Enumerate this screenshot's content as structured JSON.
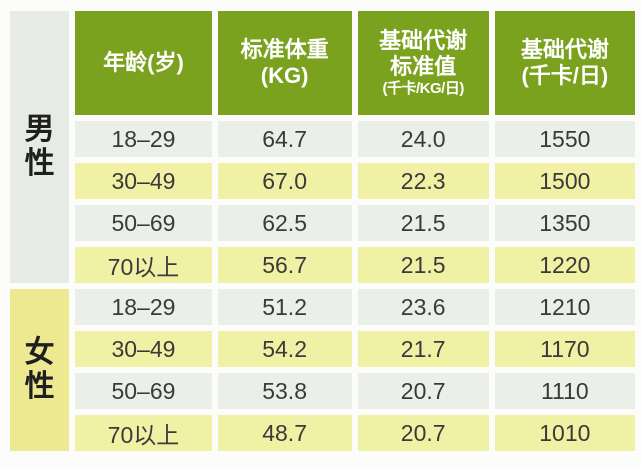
{
  "colors": {
    "header_green": "#7ba21f",
    "row_light": "#ebefe9",
    "row_yellow": "#f1f1a5",
    "male_cell_bg": "#e7ebe5",
    "female_cell_bg": "#ece991",
    "header_text": "#ffffff",
    "data_text": "#3a3a3a",
    "page_bg": "#fcfdfb"
  },
  "table": {
    "header": {
      "age": "年龄(岁)",
      "weight_line1": "标准体重",
      "weight_line2": "(KG)",
      "bmr_std_line1": "基础代谢",
      "bmr_std_line2": "标准值",
      "bmr_std_line3": "(千卡/KG/日)",
      "bmr_line1": "基础代谢",
      "bmr_line2": "(千卡/日)"
    },
    "genders": {
      "male": "男性",
      "female": "女性"
    },
    "rows": [
      {
        "group": "male",
        "age": "18–29",
        "weight": "64.7",
        "bmr_std": "24.0",
        "bmr": "1550"
      },
      {
        "group": "male",
        "age": "30–49",
        "weight": "67.0",
        "bmr_std": "22.3",
        "bmr": "1500"
      },
      {
        "group": "male",
        "age": "50–69",
        "weight": "62.5",
        "bmr_std": "21.5",
        "bmr": "1350"
      },
      {
        "group": "male",
        "age": "70以上",
        "weight": "56.7",
        "bmr_std": "21.5",
        "bmr": "1220"
      },
      {
        "group": "female",
        "age": "18–29",
        "weight": "51.2",
        "bmr_std": "23.6",
        "bmr": "1210"
      },
      {
        "group": "female",
        "age": "30–49",
        "weight": "54.2",
        "bmr_std": "21.7",
        "bmr": "1170"
      },
      {
        "group": "female",
        "age": "50–69",
        "weight": "53.8",
        "bmr_std": "20.7",
        "bmr": "1110"
      },
      {
        "group": "female",
        "age": "70以上",
        "weight": "48.7",
        "bmr_std": "20.7",
        "bmr": "1010"
      }
    ]
  },
  "chart_data": {
    "type": "table",
    "title": "",
    "columns": [
      "年龄(岁)",
      "标准体重(KG)",
      "基础代谢标准值(千卡/KG/日)",
      "基础代谢(千卡/日)"
    ],
    "groups": [
      {
        "label": "男性",
        "rows": [
          [
            "18–29",
            64.7,
            24.0,
            1550
          ],
          [
            "30–49",
            67.0,
            22.3,
            1500
          ],
          [
            "50–69",
            62.5,
            21.5,
            1350
          ],
          [
            "70以上",
            56.7,
            21.5,
            1220
          ]
        ]
      },
      {
        "label": "女性",
        "rows": [
          [
            "18–29",
            51.2,
            23.6,
            1210
          ],
          [
            "30–49",
            54.2,
            21.7,
            1170
          ],
          [
            "50–69",
            53.8,
            20.7,
            1110
          ],
          [
            "70以上",
            48.7,
            20.7,
            1010
          ]
        ]
      }
    ],
    "layout": {
      "stripe_colors": [
        "#ebefe9",
        "#f1f1a5"
      ],
      "header_color": "#7ba21f"
    }
  }
}
